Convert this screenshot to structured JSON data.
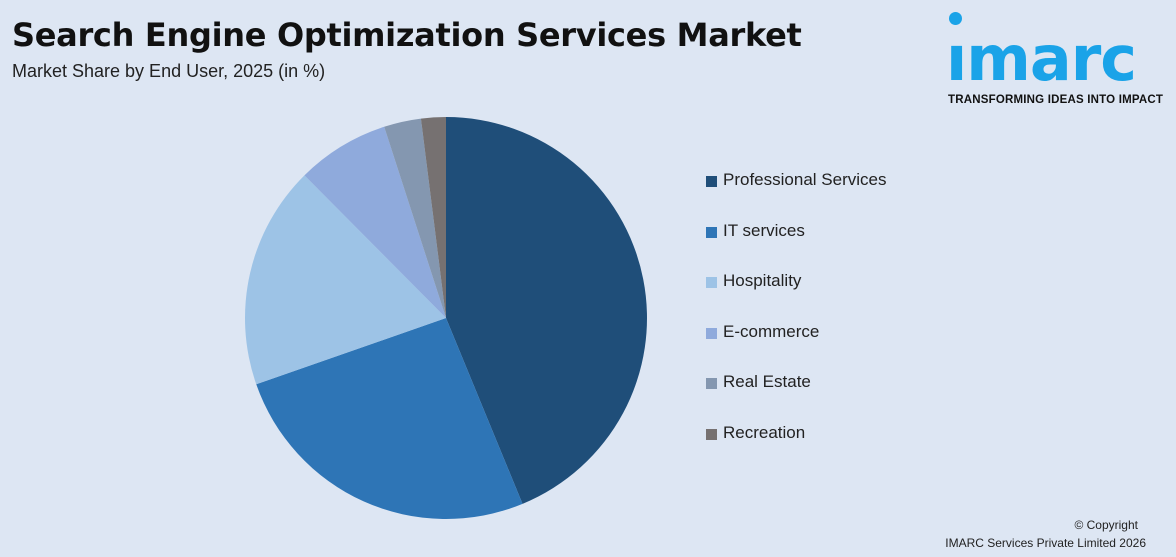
{
  "header": {
    "title": "Search Engine Optimization Services Market",
    "subtitle": "Market Share by End User, 2025 (in %)"
  },
  "logo": {
    "word": "ımarc",
    "tagline": "TRANSFORMING IDEAS INTO IMPACT",
    "color": "#1aa3e8"
  },
  "footer": {
    "copyright": "© Copyright",
    "owner": "IMARC Services Private Limited 2026"
  },
  "chart_data": {
    "type": "pie",
    "title": "Search Engine Optimization Services Market",
    "subtitle": "Market Share by End User, 2025 (in %)",
    "legend_position": "right",
    "start_angle_deg": 0,
    "direction": "clockwise",
    "slices": [
      {
        "label": "Professional Services",
        "value": 44,
        "color": "#1f4e79"
      },
      {
        "label": "IT services",
        "value": 26,
        "color": "#2e75b6"
      },
      {
        "label": "Hospitality",
        "value": 18,
        "color": "#9dc3e6"
      },
      {
        "label": "E-commerce",
        "value": 7.5,
        "color": "#8faadc"
      },
      {
        "label": "Real Estate",
        "value": 3,
        "color": "#8497b0"
      },
      {
        "label": "Recreation",
        "value": 2,
        "color": "#767171"
      }
    ]
  }
}
